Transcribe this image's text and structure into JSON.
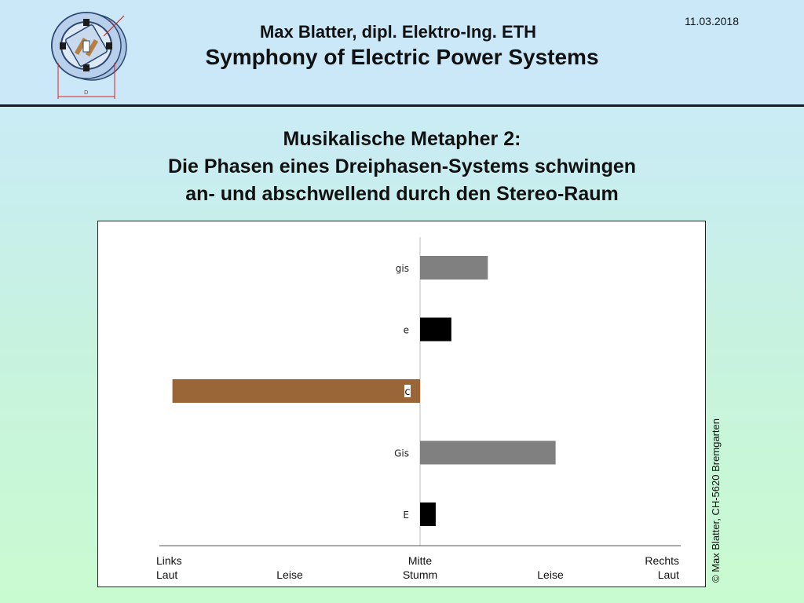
{
  "header": {
    "author": "Max Blatter, dipl. Elektro-Ing. ETH",
    "deck_title": "Symphony of Electric Power Systems",
    "date": "11.03.2018",
    "logo_labels": {
      "top": "c",
      "bottom": "D"
    }
  },
  "slide": {
    "title_line1": "Musikalische Metapher 2:",
    "title_line2": "Die Phasen eines Dreiphasen-Systems schwingen",
    "title_line3": "an- und abschwellend durch den Stereo-Raum"
  },
  "chart_data": {
    "type": "bar",
    "orientation": "horizontal",
    "xlim": [
      -1,
      1
    ],
    "bars": [
      {
        "label": "gis",
        "value": 0.26,
        "color": "#808080"
      },
      {
        "label": "e",
        "value": 0.12,
        "color": "#000000"
      },
      {
        "label": "c",
        "value": -0.95,
        "color": "#9b6637"
      },
      {
        "label": "Gis",
        "value": 0.52,
        "color": "#808080"
      },
      {
        "label": "E",
        "value": 0.06,
        "color": "#000000"
      }
    ],
    "x_tick_labels": [
      {
        "pos": -1,
        "line1": "Links",
        "line2": "Laut"
      },
      {
        "pos": -0.5,
        "line1": "",
        "line2": "Leise"
      },
      {
        "pos": 0,
        "line1": "Mitte",
        "line2": "Stumm"
      },
      {
        "pos": 0.5,
        "line1": "",
        "line2": "Leise"
      },
      {
        "pos": 1,
        "line1": "Rechts",
        "line2": "Laut"
      }
    ],
    "grid": false,
    "legend": "none"
  },
  "footer": {
    "copyright": "© Max Blatter, CH-5620 Bremgarten"
  }
}
